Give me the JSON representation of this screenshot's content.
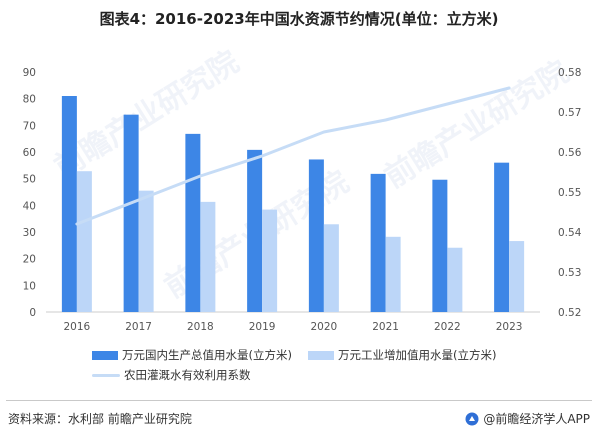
{
  "title": "图表4：2016-2023年中国水资源节约情况(单位：立方米)",
  "watermark": "前瞻产业研究院",
  "colors": {
    "series1": "#3d86e6",
    "series2": "#bcd6f8",
    "line": "#c6dcf6",
    "axis_text": "#555555",
    "axis_line": "#cccccc"
  },
  "chart_data": {
    "type": "bar",
    "categories": [
      "2016",
      "2017",
      "2018",
      "2019",
      "2020",
      "2021",
      "2022",
      "2023"
    ],
    "series": [
      {
        "name": "万元国内生产总值用水量(立方米)",
        "type": "bar",
        "axis": "left",
        "values": [
          81,
          74,
          66.8,
          60.8,
          57.2,
          51.8,
          49.6,
          56
        ]
      },
      {
        "name": "万元工业增加值用水量(立方米)",
        "type": "bar",
        "axis": "left",
        "values": [
          52.8,
          45.5,
          41.3,
          38.4,
          32.9,
          28.2,
          24.1,
          26.6
        ]
      },
      {
        "name": "农田灌溉水有效利用系数",
        "type": "line",
        "axis": "right",
        "values": [
          0.542,
          0.548,
          0.554,
          0.559,
          0.565,
          0.568,
          0.572,
          0.576
        ]
      }
    ],
    "ylim_left": [
      0,
      90
    ],
    "yticks_left": [
      "0",
      "10",
      "20",
      "30",
      "40",
      "50",
      "60",
      "70",
      "80",
      "90"
    ],
    "ylim_right": [
      0.52,
      0.58
    ],
    "yticks_right": [
      "0.52",
      "0.53",
      "0.54",
      "0.55",
      "0.56",
      "0.57",
      "0.58"
    ],
    "grid": false,
    "legend_position": "bottom"
  },
  "footer": {
    "source": "资料来源：水利部 前瞻产业研究院",
    "credit": "@前瞻经济学人APP"
  }
}
